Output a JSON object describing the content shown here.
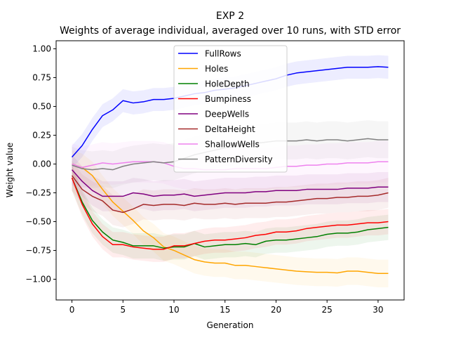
{
  "chart_data": {
    "type": "line",
    "title_line1": "EXP 2",
    "title_line2": "Weights of average individual, averaged over 10 runs, with STD error",
    "xlabel": "Generation",
    "ylabel": "Weight value",
    "xlim": [
      -1.55,
      32.55
    ],
    "ylim": [
      -1.18,
      1.07
    ],
    "x_ticks": [
      0,
      5,
      10,
      15,
      20,
      25,
      30
    ],
    "y_ticks": [
      -1.0,
      -0.75,
      -0.5,
      -0.25,
      0.0,
      0.25,
      0.5,
      0.75,
      1.0
    ],
    "x_tick_labels": [
      "0",
      "5",
      "10",
      "15",
      "20",
      "25",
      "30"
    ],
    "y_tick_labels": [
      "−1.00",
      "−0.75",
      "−0.50",
      "−0.25",
      "0.00",
      "0.25",
      "0.50",
      "0.75",
      "1.00"
    ],
    "legend_position": "upper center",
    "x": [
      0,
      1,
      2,
      3,
      4,
      5,
      6,
      7,
      8,
      9,
      10,
      11,
      12,
      13,
      14,
      15,
      16,
      17,
      18,
      19,
      20,
      21,
      22,
      23,
      24,
      25,
      26,
      27,
      28,
      29,
      30,
      31
    ],
    "series": [
      {
        "name": "FullRows",
        "color": "#0000ff",
        "band_width": 0.1,
        "values": [
          0.06,
          0.16,
          0.3,
          0.42,
          0.47,
          0.55,
          0.53,
          0.54,
          0.56,
          0.56,
          0.57,
          0.59,
          0.61,
          0.62,
          0.64,
          0.65,
          0.66,
          0.68,
          0.7,
          0.72,
          0.74,
          0.77,
          0.79,
          0.8,
          0.81,
          0.82,
          0.83,
          0.84,
          0.84,
          0.84,
          0.845,
          0.84
        ]
      },
      {
        "name": "Holes",
        "color": "#ffa500",
        "band_width": 0.12,
        "values": [
          0.0,
          -0.03,
          -0.1,
          -0.22,
          -0.33,
          -0.41,
          -0.49,
          -0.58,
          -0.64,
          -0.72,
          -0.75,
          -0.79,
          -0.83,
          -0.85,
          -0.86,
          -0.86,
          -0.88,
          -0.88,
          -0.89,
          -0.9,
          -0.91,
          -0.92,
          -0.93,
          -0.935,
          -0.94,
          -0.94,
          -0.945,
          -0.93,
          -0.93,
          -0.94,
          -0.95,
          -0.95
        ]
      },
      {
        "name": "HoleDepth",
        "color": "#008000",
        "band_width": 0.11,
        "values": [
          -0.12,
          -0.33,
          -0.49,
          -0.59,
          -0.66,
          -0.68,
          -0.71,
          -0.71,
          -0.71,
          -0.73,
          -0.72,
          -0.72,
          -0.69,
          -0.72,
          -0.71,
          -0.7,
          -0.7,
          -0.69,
          -0.7,
          -0.67,
          -0.66,
          -0.66,
          -0.65,
          -0.64,
          -0.63,
          -0.61,
          -0.6,
          -0.6,
          -0.59,
          -0.57,
          -0.56,
          -0.55
        ]
      },
      {
        "name": "Bumpiness",
        "color": "#ff0000",
        "band_width": 0.11,
        "values": [
          -0.12,
          -0.35,
          -0.52,
          -0.63,
          -0.7,
          -0.7,
          -0.72,
          -0.73,
          -0.74,
          -0.74,
          -0.71,
          -0.71,
          -0.69,
          -0.67,
          -0.66,
          -0.66,
          -0.65,
          -0.64,
          -0.62,
          -0.61,
          -0.59,
          -0.59,
          -0.58,
          -0.56,
          -0.55,
          -0.54,
          -0.53,
          -0.53,
          -0.52,
          -0.51,
          -0.51,
          -0.5
        ]
      },
      {
        "name": "DeepWells",
        "color": "#800080",
        "band_width": 0.13,
        "values": [
          -0.05,
          -0.15,
          -0.23,
          -0.28,
          -0.28,
          -0.28,
          -0.25,
          -0.26,
          -0.28,
          -0.27,
          -0.27,
          -0.26,
          -0.28,
          -0.27,
          -0.26,
          -0.25,
          -0.25,
          -0.25,
          -0.24,
          -0.24,
          -0.23,
          -0.23,
          -0.23,
          -0.22,
          -0.22,
          -0.22,
          -0.22,
          -0.21,
          -0.21,
          -0.21,
          -0.2,
          -0.2
        ]
      },
      {
        "name": "DeltaHeight",
        "color": "#a52a2a",
        "band_width": 0.13,
        "values": [
          -0.1,
          -0.22,
          -0.28,
          -0.32,
          -0.4,
          -0.42,
          -0.39,
          -0.35,
          -0.36,
          -0.35,
          -0.35,
          -0.36,
          -0.34,
          -0.35,
          -0.35,
          -0.34,
          -0.35,
          -0.34,
          -0.34,
          -0.34,
          -0.33,
          -0.33,
          -0.32,
          -0.31,
          -0.3,
          -0.3,
          -0.29,
          -0.29,
          -0.28,
          -0.28,
          -0.27,
          -0.25
        ]
      },
      {
        "name": "ShallowWells",
        "color": "#ee82ee",
        "band_width": 0.18,
        "values": [
          0.0,
          -0.03,
          -0.01,
          0.01,
          0.0,
          0.01,
          0.02,
          0.02,
          0.02,
          0.01,
          -0.02,
          -0.04,
          -0.04,
          -0.05,
          -0.05,
          -0.05,
          -0.04,
          -0.04,
          -0.04,
          -0.04,
          -0.03,
          -0.02,
          -0.02,
          -0.01,
          -0.01,
          0.0,
          0.0,
          0.01,
          0.01,
          0.01,
          0.02,
          0.02
        ]
      },
      {
        "name": "PatternDiversity",
        "color": "#808080",
        "band_width": 0.16,
        "values": [
          -0.01,
          -0.04,
          -0.05,
          -0.04,
          -0.05,
          -0.02,
          0.0,
          0.01,
          0.02,
          0.01,
          0.02,
          0.05,
          0.08,
          0.1,
          0.12,
          0.14,
          0.15,
          0.17,
          0.18,
          0.19,
          0.2,
          0.2,
          0.2,
          0.21,
          0.2,
          0.21,
          0.21,
          0.2,
          0.21,
          0.22,
          0.21,
          0.21
        ]
      }
    ]
  }
}
